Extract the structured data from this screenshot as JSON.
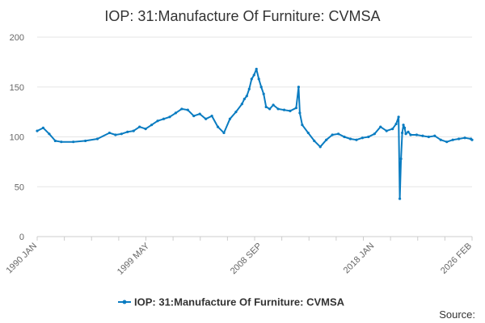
{
  "chart_data": {
    "type": "line",
    "title": "IOP: 31:Manufacture Of Furniture: CVMSA",
    "xlabel": "",
    "ylabel": "",
    "ylim": [
      0,
      200
    ],
    "yticks": [
      0,
      50,
      100,
      150,
      200
    ],
    "xlim": [
      1990.0,
      2026.1
    ],
    "xtick_labels": [
      {
        "label": "1990 JAN",
        "x": 1990.0
      },
      {
        "label": "1999 MAY",
        "x": 1999.33
      },
      {
        "label": "2008 SEP",
        "x": 2008.67
      },
      {
        "label": "2018 JAN",
        "x": 2018.0
      },
      {
        "label": "2026 FEB",
        "x": 2026.1
      }
    ],
    "grid": true,
    "legend": "bottom-center",
    "series": [
      {
        "name": "IOP: 31:Manufacture Of Furniture: CVMSA",
        "color": "#0a7cc1",
        "x": [
          1990.0,
          1990.5,
          1991.0,
          1991.5,
          1992.0,
          1993.0,
          1994.0,
          1995.0,
          1996.0,
          1996.5,
          1997.0,
          1997.5,
          1998.0,
          1998.5,
          1999.0,
          1999.5,
          2000.0,
          2000.5,
          2001.0,
          2001.5,
          2002.0,
          2002.5,
          2003.0,
          2003.5,
          2004.0,
          2004.5,
          2005.0,
          2005.5,
          2006.0,
          2006.5,
          2007.0,
          2007.2,
          2007.4,
          2007.6,
          2007.8,
          2008.0,
          2008.2,
          2008.4,
          2008.6,
          2008.8,
          2009.0,
          2009.3,
          2009.6,
          2010.0,
          2010.5,
          2011.0,
          2011.5,
          2011.7,
          2011.8,
          2012.0,
          2012.5,
          2013.0,
          2013.5,
          2014.0,
          2014.5,
          2015.0,
          2015.5,
          2016.0,
          2016.5,
          2017.0,
          2017.5,
          2018.0,
          2018.5,
          2019.0,
          2019.5,
          2019.8,
          2020.0,
          2020.1,
          2020.2,
          2020.3,
          2020.4,
          2020.5,
          2020.6,
          2020.8,
          2021.0,
          2021.5,
          2022.0,
          2022.5,
          2023.0,
          2023.5,
          2024.0,
          2024.5,
          2025.0,
          2025.5,
          2026.0,
          2026.1
        ],
        "values": [
          106,
          109,
          103,
          96,
          95,
          95,
          96,
          98,
          104,
          102,
          103,
          105,
          106,
          110,
          108,
          112,
          116,
          118,
          120,
          124,
          128,
          127,
          121,
          123,
          118,
          121,
          110,
          104,
          118,
          125,
          133,
          138,
          141,
          148,
          158,
          162,
          168,
          158,
          150,
          143,
          130,
          128,
          132,
          128,
          127,
          126,
          129,
          150,
          124,
          112,
          104,
          96,
          90,
          97,
          102,
          103,
          100,
          98,
          97,
          99,
          100,
          103,
          110,
          106,
          108,
          113,
          120,
          38,
          78,
          104,
          112,
          109,
          103,
          105,
          102,
          102,
          101,
          100,
          101,
          97,
          95,
          97,
          98,
          99,
          98,
          97
        ]
      }
    ],
    "source_label": "Source:"
  }
}
